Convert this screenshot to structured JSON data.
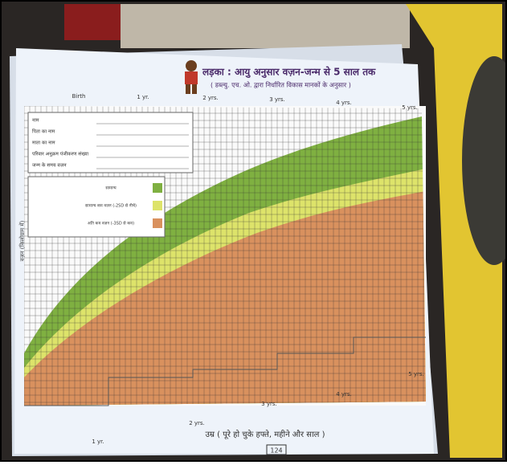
{
  "title": "लड़का : आयु अनुसार वज़न-जन्म से 5 साल तक",
  "subtitle": "( डब्ल्यु. एच. ओ. द्वारा निर्धारित विकास मानकों के अनुसार )",
  "age_labels": [
    "Birth",
    "1 yr.",
    "2 yrs.",
    "3 yrs.",
    "4 yrs.",
    "5 yrs."
  ],
  "form_fields": [
    "नाम",
    "पिता का नाम",
    "माता का नाम",
    "परिवार अनुक्रम पंजीकरण संख्या",
    "जन्म के समय वज़न"
  ],
  "legend": [
    "सामान्य",
    "सामान्य कम वज़न (-2SD से नीचे)",
    "अति कम वज़न (-3SD से कम)"
  ],
  "y_axis_label": "वज़न (किलोग्राम में)",
  "x_axis_label": "उम्र ( पूरे हो चुके हफ्ते, महीने और साल )",
  "page_number": "124"
}
